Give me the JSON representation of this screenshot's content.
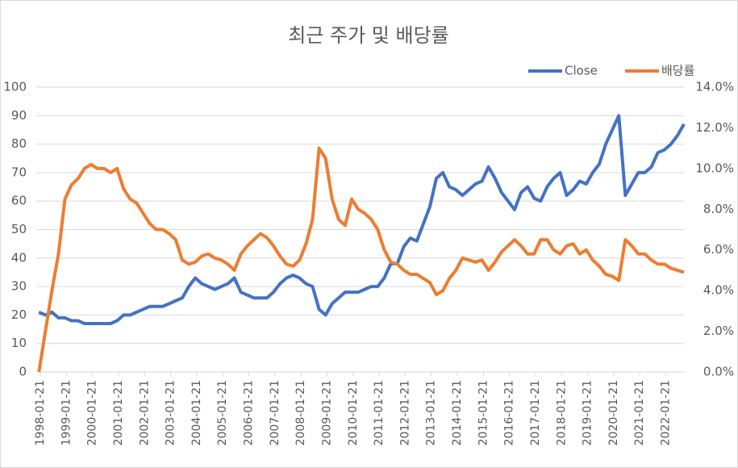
{
  "chart_data": {
    "type": "line",
    "title": "최근 주가 및 배당률",
    "x": [
      1998.0,
      1998.25,
      1998.5,
      1998.75,
      1999.0,
      1999.25,
      1999.5,
      1999.75,
      2000.0,
      2000.25,
      2000.5,
      2000.75,
      2001.0,
      2001.25,
      2001.5,
      2001.75,
      2002.0,
      2002.25,
      2002.5,
      2002.75,
      2003.0,
      2003.25,
      2003.5,
      2003.75,
      2004.0,
      2004.25,
      2004.5,
      2004.75,
      2005.0,
      2005.25,
      2005.5,
      2005.75,
      2006.0,
      2006.25,
      2006.5,
      2006.75,
      2007.0,
      2007.25,
      2007.5,
      2007.75,
      2008.0,
      2008.25,
      2008.5,
      2008.75,
      2009.0,
      2009.25,
      2009.5,
      2009.75,
      2010.0,
      2010.25,
      2010.5,
      2010.75,
      2011.0,
      2011.25,
      2011.5,
      2011.75,
      2012.0,
      2012.25,
      2012.5,
      2012.75,
      2013.0,
      2013.25,
      2013.5,
      2013.75,
      2014.0,
      2014.25,
      2014.5,
      2014.75,
      2015.0,
      2015.25,
      2015.5,
      2015.75,
      2016.0,
      2016.25,
      2016.5,
      2016.75,
      2017.0,
      2017.25,
      2017.5,
      2017.75,
      2018.0,
      2018.25,
      2018.5,
      2018.75,
      2019.0,
      2019.25,
      2019.5,
      2019.75,
      2020.0,
      2020.25,
      2020.5,
      2020.75,
      2021.0,
      2021.25,
      2021.5,
      2021.75,
      2022.0,
      2022.25,
      2022.5,
      2022.75
    ],
    "series": [
      {
        "name": "Close",
        "color": "#4472c4",
        "values": [
          21,
          20,
          21,
          19,
          19,
          18,
          18,
          17,
          17,
          17,
          17,
          17,
          18,
          20,
          20,
          21,
          22,
          23,
          23,
          23,
          24,
          25,
          26,
          30,
          33,
          31,
          30,
          29,
          30,
          31,
          33,
          28,
          27,
          26,
          26,
          26,
          28,
          31,
          33,
          34,
          33,
          31,
          30,
          22,
          20,
          24,
          26,
          28,
          28,
          28,
          29,
          30,
          30,
          33,
          38,
          38,
          44,
          47,
          46,
          52,
          58,
          68,
          70,
          65,
          64,
          62,
          64,
          66,
          67,
          72,
          68,
          63,
          60,
          57,
          63,
          65,
          61,
          60,
          65,
          68,
          70,
          62,
          64,
          67,
          66,
          70,
          73,
          80,
          85,
          90,
          62,
          66,
          70,
          70,
          72,
          77,
          78,
          80,
          83,
          87
        ]
      },
      {
        "name": "배당률",
        "color": "#ed7d31",
        "axis": "y2",
        "values": [
          0,
          2.0,
          4.0,
          5.8,
          8.5,
          9.2,
          9.5,
          10.0,
          10.2,
          10.0,
          10.0,
          9.8,
          10.0,
          9.0,
          8.5,
          8.3,
          7.8,
          7.3,
          7.0,
          7.0,
          6.8,
          6.5,
          5.5,
          5.3,
          5.4,
          5.7,
          5.8,
          5.6,
          5.5,
          5.3,
          5.0,
          5.8,
          6.2,
          6.5,
          6.8,
          6.6,
          6.2,
          5.7,
          5.3,
          5.2,
          5.5,
          6.3,
          7.5,
          11.0,
          10.5,
          8.5,
          7.5,
          7.2,
          8.5,
          8.0,
          7.8,
          7.5,
          7.0,
          6.0,
          5.4,
          5.3,
          5.0,
          4.8,
          4.8,
          4.6,
          4.4,
          3.8,
          4.0,
          4.6,
          5.0,
          5.6,
          5.5,
          5.4,
          5.5,
          5.0,
          5.4,
          5.9,
          6.2,
          6.5,
          6.2,
          5.8,
          5.8,
          6.5,
          6.5,
          6.0,
          5.8,
          6.2,
          6.3,
          5.8,
          6.0,
          5.5,
          5.2,
          4.8,
          4.7,
          4.5,
          6.5,
          6.2,
          5.8,
          5.8,
          5.5,
          5.3,
          5.3,
          5.1,
          5.0,
          4.9
        ]
      }
    ],
    "xlim": [
      1997.9,
      2022.75
    ],
    "xticks": [
      {
        "value": 1998.055,
        "label": "1998-01-21"
      },
      {
        "value": 1999.055,
        "label": "1999-01-21"
      },
      {
        "value": 2000.055,
        "label": "2000-01-21"
      },
      {
        "value": 2001.055,
        "label": "2001-01-21"
      },
      {
        "value": 2002.055,
        "label": "2002-01-21"
      },
      {
        "value": 2003.055,
        "label": "2003-01-21"
      },
      {
        "value": 2004.055,
        "label": "2004-01-21"
      },
      {
        "value": 2005.055,
        "label": "2005-01-21"
      },
      {
        "value": 2006.055,
        "label": "2006-01-21"
      },
      {
        "value": 2007.055,
        "label": "2007-01-21"
      },
      {
        "value": 2008.055,
        "label": "2008-01-21"
      },
      {
        "value": 2009.055,
        "label": "2009-01-21"
      },
      {
        "value": 2010.055,
        "label": "2010-01-21"
      },
      {
        "value": 2011.055,
        "label": "2011-01-21"
      },
      {
        "value": 2012.055,
        "label": "2012-01-21"
      },
      {
        "value": 2013.055,
        "label": "2013-01-21"
      },
      {
        "value": 2014.055,
        "label": "2014-01-21"
      },
      {
        "value": 2015.055,
        "label": "2015-01-21"
      },
      {
        "value": 2016.055,
        "label": "2016-01-21"
      },
      {
        "value": 2017.055,
        "label": "2017-01-21"
      },
      {
        "value": 2018.055,
        "label": "2018-01-21"
      },
      {
        "value": 2019.055,
        "label": "2019-01-21"
      },
      {
        "value": 2020.055,
        "label": "2020-01-21"
      },
      {
        "value": 2021.055,
        "label": "2021-01-21"
      },
      {
        "value": 2022.055,
        "label": "2022-01-21"
      }
    ],
    "ylim": [
      0,
      100
    ],
    "yticks": [
      0,
      10,
      20,
      30,
      40,
      50,
      60,
      70,
      80,
      90,
      100
    ],
    "y2lim": [
      0,
      14
    ],
    "y2ticks": [
      {
        "value": 0,
        "label": "0.0%"
      },
      {
        "value": 2,
        "label": "2.0%"
      },
      {
        "value": 4,
        "label": "4.0%"
      },
      {
        "value": 6,
        "label": "6.0%"
      },
      {
        "value": 8,
        "label": "8.0%"
      },
      {
        "value": 10,
        "label": "10.0%"
      },
      {
        "value": 12,
        "label": "12.0%"
      },
      {
        "value": 14,
        "label": "14.0%"
      }
    ],
    "grid": true,
    "legend": "top-right"
  }
}
